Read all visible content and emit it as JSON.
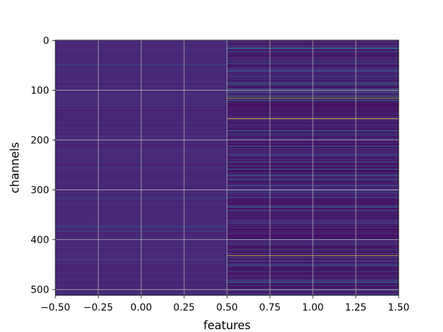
{
  "chart_data": {
    "type": "heatmap",
    "title": "",
    "xlabel": "features",
    "ylabel": "channels",
    "xlim": [
      -0.5,
      1.5
    ],
    "ylim": [
      511.5,
      -0.5
    ],
    "y_inverted": true,
    "grid": true,
    "colormap": "viridis",
    "columns": [
      0,
      1
    ],
    "n_rows": 512,
    "x_ticks": [
      -0.5,
      -0.25,
      0.0,
      0.25,
      0.5,
      0.75,
      1.0,
      1.25,
      1.5
    ],
    "x_tick_labels": [
      "−0.50",
      "−0.25",
      "0.00",
      "0.25",
      "0.50",
      "0.75",
      "1.00",
      "1.25",
      "1.50"
    ],
    "y_ticks": [
      0,
      100,
      200,
      300,
      400,
      500
    ],
    "y_tick_labels": [
      "0",
      "100",
      "200",
      "300",
      "400",
      "500"
    ],
    "column_0_base": 0.12,
    "column_1_base": 0.08,
    "column_1_highlights": [
      {
        "row": 16,
        "value": 0.45
      },
      {
        "row": 22,
        "value": 0.35
      },
      {
        "row": 40,
        "value": 0.4
      },
      {
        "row": 62,
        "value": 0.35
      },
      {
        "row": 87,
        "value": 0.6
      },
      {
        "row": 97,
        "value": 0.35
      },
      {
        "row": 112,
        "value": 0.55
      },
      {
        "row": 116,
        "value": 0.9
      },
      {
        "row": 121,
        "value": 0.45
      },
      {
        "row": 157,
        "value": 1.0
      },
      {
        "row": 188,
        "value": 0.35
      },
      {
        "row": 244,
        "value": 0.45
      },
      {
        "row": 258,
        "value": 0.4
      },
      {
        "row": 280,
        "value": 0.4
      },
      {
        "row": 335,
        "value": 0.45
      },
      {
        "row": 342,
        "value": 0.35
      },
      {
        "row": 400,
        "value": 0.55
      },
      {
        "row": 419,
        "value": 0.35
      },
      {
        "row": 432,
        "value": 0.95
      },
      {
        "row": 452,
        "value": 0.4
      },
      {
        "row": 481,
        "value": 0.5
      },
      {
        "row": 486,
        "value": 0.35
      },
      {
        "row": 500,
        "value": 0.45
      }
    ],
    "column_0_highlights": [
      {
        "row": 50,
        "value": 0.22
      },
      {
        "row": 130,
        "value": 0.2
      },
      {
        "row": 198,
        "value": 0.2
      },
      {
        "row": 255,
        "value": 0.2
      },
      {
        "row": 318,
        "value": 0.22
      },
      {
        "row": 374,
        "value": 0.22
      },
      {
        "row": 383,
        "value": 0.2
      },
      {
        "row": 440,
        "value": 0.2
      }
    ]
  }
}
